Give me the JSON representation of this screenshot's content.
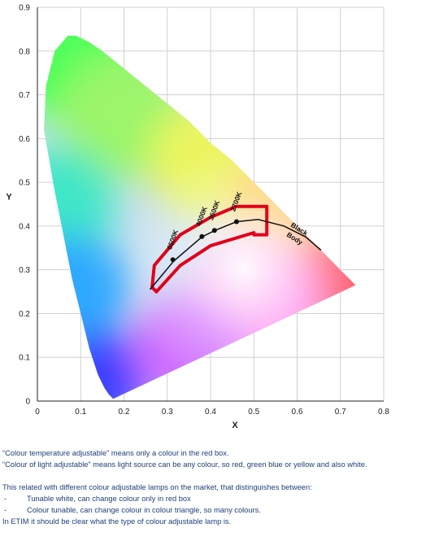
{
  "chart_data": {
    "type": "diagram",
    "xlabel": "X",
    "ylabel": "Y",
    "xlim": [
      0,
      0.8
    ],
    "ylim": [
      0,
      0.9
    ],
    "x_ticks": [
      "0",
      "0.1",
      "0.2",
      "0.3",
      "0.4",
      "0.5",
      "0.6",
      "0.7",
      "0.8"
    ],
    "y_ticks": [
      "0",
      "0.1",
      "0.2",
      "0.3",
      "0.4",
      "0.5",
      "0.6",
      "0.7",
      "0.8",
      "0.9"
    ],
    "spectral_locus": [
      [
        0.175,
        0.005
      ],
      [
        0.165,
        0.015
      ],
      [
        0.155,
        0.03
      ],
      [
        0.14,
        0.06
      ],
      [
        0.12,
        0.12
      ],
      [
        0.1,
        0.2
      ],
      [
        0.08,
        0.28
      ],
      [
        0.06,
        0.38
      ],
      [
        0.04,
        0.48
      ],
      [
        0.015,
        0.62
      ],
      [
        0.02,
        0.72
      ],
      [
        0.04,
        0.8
      ],
      [
        0.07,
        0.835
      ],
      [
        0.09,
        0.835
      ],
      [
        0.12,
        0.82
      ],
      [
        0.15,
        0.8
      ],
      [
        0.2,
        0.76
      ],
      [
        0.25,
        0.72
      ],
      [
        0.3,
        0.68
      ],
      [
        0.35,
        0.64
      ],
      [
        0.4,
        0.59
      ],
      [
        0.45,
        0.55
      ],
      [
        0.5,
        0.5
      ],
      [
        0.55,
        0.45
      ],
      [
        0.6,
        0.4
      ],
      [
        0.65,
        0.35
      ],
      [
        0.7,
        0.3
      ],
      [
        0.735,
        0.265
      ]
    ],
    "planckian_locus": [
      [
        0.26,
        0.255
      ],
      [
        0.315,
        0.32
      ],
      [
        0.38,
        0.375
      ],
      [
        0.41,
        0.39
      ],
      [
        0.46,
        0.41
      ],
      [
        0.51,
        0.415
      ],
      [
        0.57,
        0.4
      ],
      [
        0.62,
        0.375
      ],
      [
        0.655,
        0.345
      ]
    ],
    "cct_points": [
      {
        "label": "6500K",
        "x": 0.313,
        "y": 0.323
      },
      {
        "label": "4000K",
        "x": 0.38,
        "y": 0.376
      },
      {
        "label": "3500K",
        "x": 0.409,
        "y": 0.39
      },
      {
        "label": "2700K",
        "x": 0.46,
        "y": 0.41
      }
    ],
    "red_box": [
      [
        0.27,
        0.31
      ],
      [
        0.33,
        0.38
      ],
      [
        0.4,
        0.42
      ],
      [
        0.46,
        0.445
      ],
      [
        0.53,
        0.445
      ],
      [
        0.53,
        0.38
      ],
      [
        0.5,
        0.38
      ],
      [
        0.5,
        0.385
      ],
      [
        0.4,
        0.355
      ],
      [
        0.33,
        0.31
      ],
      [
        0.275,
        0.25
      ],
      [
        0.265,
        0.26
      ]
    ],
    "blackbody_label": [
      "Black",
      "Body"
    ]
  },
  "notes": {
    "line1": "“Colour temperature adjustable” means only a colour in the red box.",
    "line2": "“Colour of light adjustable” means light source can be any colour, so red, green blue or yellow and also white.",
    "line3": "This related with different colour adjustable lamps on the market, that distinguishes between:",
    "bullet1_dash": "-",
    "bullet1": "Tunable white, can change colour only in red box",
    "bullet2_dash": "-",
    "bullet2": "Colour tunable, can change colour in colour triangle, so many colours.",
    "line4": "In ETIM it should be clear what the type of colour adjustable lamp is."
  }
}
